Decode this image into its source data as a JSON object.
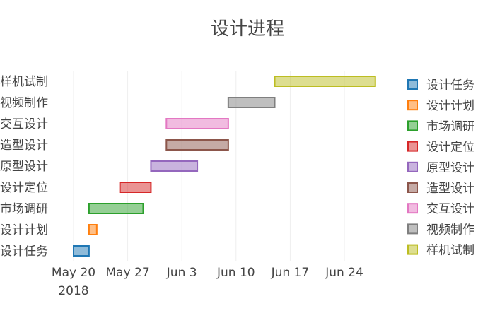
{
  "chart_data": {
    "type": "gantt",
    "title": "设计进程",
    "xlabel": "",
    "ylabel": "",
    "x_ticks": [
      "2018-05-20",
      "2018-05-27",
      "2018-06-03",
      "2018-06-10",
      "2018-06-17",
      "2018-06-24"
    ],
    "x_tick_labels": [
      "May 20",
      "May 27",
      "Jun 3",
      "Jun 10",
      "Jun 17",
      "Jun 24"
    ],
    "x_year_label": "2018",
    "grid": true,
    "legend_position": "right",
    "tasks": [
      {
        "name": "设计任务",
        "start": "2018-05-20",
        "end": "2018-05-22",
        "color": "#1f77b4"
      },
      {
        "name": "设计计划",
        "start": "2018-05-22",
        "end": "2018-05-23",
        "color": "#ff7f0e"
      },
      {
        "name": "市场调研",
        "start": "2018-05-22",
        "end": "2018-05-29",
        "color": "#2ca02c"
      },
      {
        "name": "设计定位",
        "start": "2018-05-26",
        "end": "2018-05-30",
        "color": "#d62728"
      },
      {
        "name": "原型设计",
        "start": "2018-05-30",
        "end": "2018-06-05",
        "color": "#9467bd"
      },
      {
        "name": "造型设计",
        "start": "2018-06-01",
        "end": "2018-06-09",
        "color": "#8c564b"
      },
      {
        "name": "交互设计",
        "start": "2018-06-01",
        "end": "2018-06-09",
        "color": "#e377c2"
      },
      {
        "name": "视频制作",
        "start": "2018-06-09",
        "end": "2018-06-15",
        "color": "#7f7f7f"
      },
      {
        "name": "样机试制",
        "start": "2018-06-15",
        "end": "2018-06-28",
        "color": "#bcbd22"
      }
    ]
  }
}
